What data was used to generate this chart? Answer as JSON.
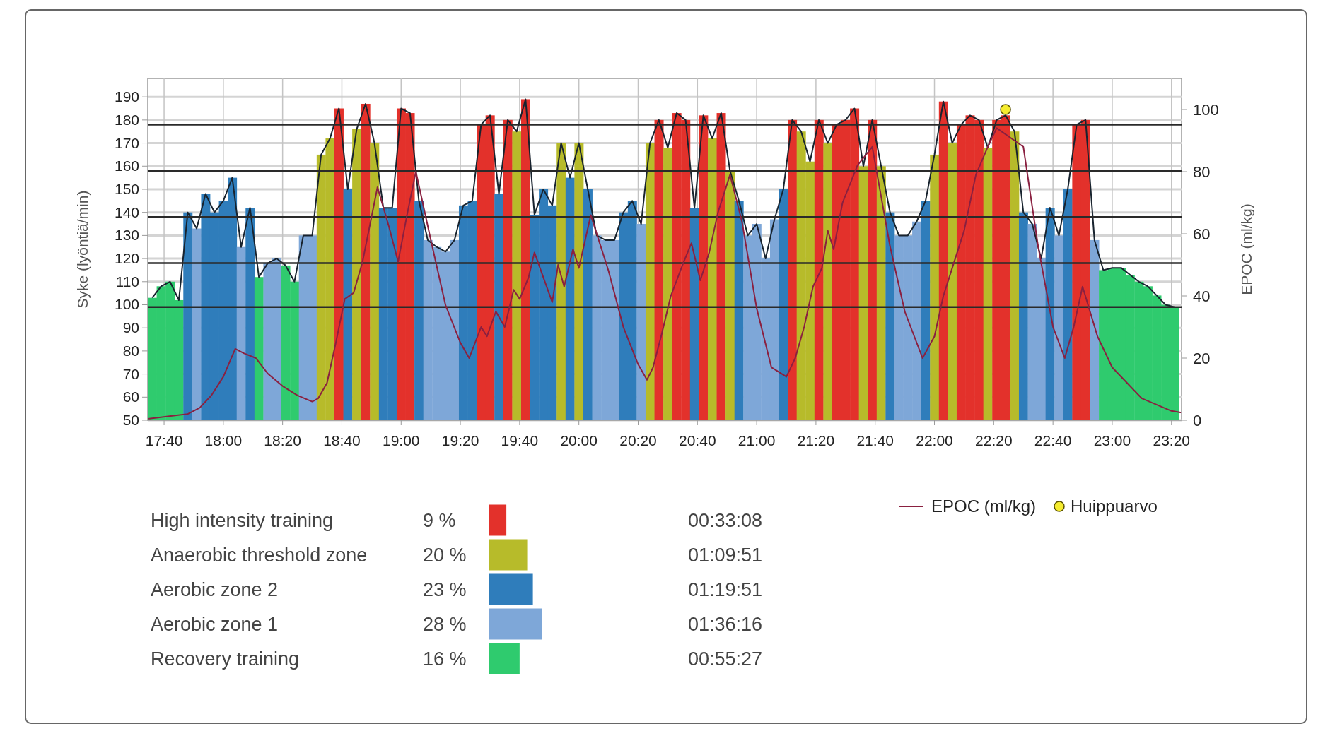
{
  "chart_data": [
    {
      "type": "bar",
      "xlim": [
        17.575,
        23.39
      ],
      "xticks": [
        {
          "value": 17.6667,
          "label": "17:40"
        },
        {
          "value": 18,
          "label": "18:00"
        },
        {
          "value": 18.3333,
          "label": "18:20"
        },
        {
          "value": 18.6667,
          "label": "18:40"
        },
        {
          "value": 19,
          "label": "19:00"
        },
        {
          "value": 19.3333,
          "label": "19:20"
        },
        {
          "value": 19.6667,
          "label": "19:40"
        },
        {
          "value": 20,
          "label": "20:00"
        },
        {
          "value": 20.3333,
          "label": "20:20"
        },
        {
          "value": 20.6667,
          "label": "20:40"
        },
        {
          "value": 21,
          "label": "21:00"
        },
        {
          "value": 21.3333,
          "label": "21:20"
        },
        {
          "value": 21.6667,
          "label": "21:40"
        },
        {
          "value": 22,
          "label": "22:00"
        },
        {
          "value": 22.3333,
          "label": "22:20"
        },
        {
          "value": 22.6667,
          "label": "22:40"
        },
        {
          "value": 23,
          "label": "23:00"
        },
        {
          "value": 23.3333,
          "label": "23:20"
        }
      ],
      "ylim": [
        50,
        198
      ],
      "yticks": [
        50,
        60,
        70,
        80,
        90,
        100,
        110,
        120,
        130,
        140,
        150,
        160,
        170,
        180,
        190
      ],
      "y2lim": [
        0,
        110
      ],
      "y2ticks": [
        0,
        20,
        40,
        60,
        80,
        100
      ],
      "ylabel": "Syke (lyöntiä/min)",
      "y2label": "EPOC (ml/kg)",
      "grid": true,
      "legend": "bottom right",
      "ref_lines": [
        {
          "axis": "y",
          "value": 99,
          "color": "#2a2a2a"
        },
        {
          "axis": "y",
          "value": 118,
          "color": "#2a2a2a"
        },
        {
          "axis": "y",
          "value": 138,
          "color": "#2a2a2a"
        },
        {
          "axis": "y",
          "value": 158,
          "color": "#2a2a2a"
        },
        {
          "axis": "y",
          "value": 178,
          "color": "#2a2a2a"
        }
      ],
      "series": [
        {
          "type": "bar",
          "x": [
            17.6,
            17.65,
            17.7,
            17.75,
            17.8,
            17.85,
            17.9,
            17.95,
            18,
            18.05,
            18.1,
            18.15,
            18.2,
            18.25,
            18.3,
            18.35,
            18.4,
            18.45,
            18.5,
            18.55,
            18.6,
            18.65,
            18.7,
            18.75,
            18.8,
            18.85,
            18.9,
            18.95,
            19,
            19.05,
            19.1,
            19.15,
            19.2,
            19.25,
            19.3,
            19.35,
            19.4,
            19.45,
            19.5,
            19.55,
            19.6,
            19.65,
            19.7,
            19.75,
            19.8,
            19.85,
            19.9,
            19.95,
            20,
            20.05,
            20.1,
            20.15,
            20.2,
            20.25,
            20.3,
            20.35,
            20.4,
            20.45,
            20.5,
            20.55,
            20.6,
            20.65,
            20.7,
            20.75,
            20.8,
            20.85,
            20.9,
            20.95,
            21,
            21.05,
            21.1,
            21.15,
            21.2,
            21.25,
            21.3,
            21.35,
            21.4,
            21.45,
            21.5,
            21.55,
            21.6,
            21.65,
            21.7,
            21.75,
            21.8,
            21.85,
            21.9,
            21.95,
            22,
            22.05,
            22.1,
            22.15,
            22.2,
            22.25,
            22.3,
            22.35,
            22.4,
            22.45,
            22.5,
            22.55,
            22.6,
            22.65,
            22.7,
            22.75,
            22.8,
            22.85,
            22.9,
            22.95,
            23,
            23.05,
            23.1,
            23.15,
            23.2,
            23.25,
            23.3,
            23.35
          ],
          "values": [
            103,
            108,
            110,
            102,
            140,
            133,
            148,
            140,
            145,
            155,
            125,
            142,
            112,
            118,
            120,
            117,
            110,
            130,
            130,
            165,
            172,
            185,
            150,
            176,
            187,
            170,
            142,
            142,
            185,
            183,
            145,
            128,
            125,
            123,
            128,
            143,
            145,
            178,
            182,
            148,
            180,
            175,
            189,
            139,
            150,
            143,
            170,
            155,
            170,
            150,
            130,
            128,
            128,
            140,
            145,
            135,
            170,
            180,
            168,
            183,
            180,
            142,
            182,
            172,
            183,
            158,
            145,
            130,
            135,
            120,
            137,
            150,
            180,
            175,
            162,
            180,
            170,
            178,
            180,
            185,
            160,
            180,
            160,
            140,
            130,
            130,
            136,
            145,
            165,
            188,
            170,
            178,
            182,
            180,
            168,
            180,
            182,
            175,
            140,
            135,
            120,
            142,
            130,
            150,
            178,
            180,
            128,
            115,
            116,
            116,
            113,
            110,
            108,
            104,
            100,
            99
          ],
          "colors": [
            "#2fcb6e",
            "#2fcb6e",
            "#2fcb6e",
            "#2fcb6e",
            "#2f7dbb",
            "#7ea7d8",
            "#2f7dbb",
            "#2f7dbb",
            "#2f7dbb",
            "#2f7dbb",
            "#7ea7d8",
            "#2f7dbb",
            "#2fcb6e",
            "#7ea7d8",
            "#7ea7d8",
            "#2fcb6e",
            "#2fcb6e",
            "#7ea7d8",
            "#7ea7d8",
            "#b7bb2a",
            "#b7bb2a",
            "#e3312b",
            "#2f7dbb",
            "#b7bb2a",
            "#e3312b",
            "#b7bb2a",
            "#2f7dbb",
            "#2f7dbb",
            "#e3312b",
            "#e3312b",
            "#2f7dbb",
            "#7ea7d8",
            "#7ea7d8",
            "#7ea7d8",
            "#7ea7d8",
            "#2f7dbb",
            "#2f7dbb",
            "#e3312b",
            "#e3312b",
            "#2f7dbb",
            "#e3312b",
            "#b7bb2a",
            "#e3312b",
            "#2f7dbb",
            "#2f7dbb",
            "#2f7dbb",
            "#b7bb2a",
            "#2f7dbb",
            "#b7bb2a",
            "#2f7dbb",
            "#7ea7d8",
            "#7ea7d8",
            "#7ea7d8",
            "#2f7dbb",
            "#2f7dbb",
            "#7ea7d8",
            "#b7bb2a",
            "#e3312b",
            "#b7bb2a",
            "#e3312b",
            "#e3312b",
            "#2f7dbb",
            "#e3312b",
            "#b7bb2a",
            "#e3312b",
            "#b7bb2a",
            "#2f7dbb",
            "#7ea7d8",
            "#7ea7d8",
            "#7ea7d8",
            "#7ea7d8",
            "#2f7dbb",
            "#e3312b",
            "#b7bb2a",
            "#b7bb2a",
            "#e3312b",
            "#b7bb2a",
            "#e3312b",
            "#e3312b",
            "#e3312b",
            "#b7bb2a",
            "#e3312b",
            "#b7bb2a",
            "#2f7dbb",
            "#7ea7d8",
            "#7ea7d8",
            "#7ea7d8",
            "#2f7dbb",
            "#b7bb2a",
            "#e3312b",
            "#b7bb2a",
            "#e3312b",
            "#e3312b",
            "#e3312b",
            "#b7bb2a",
            "#e3312b",
            "#e3312b",
            "#b7bb2a",
            "#2f7dbb",
            "#7ea7d8",
            "#7ea7d8",
            "#2f7dbb",
            "#7ea7d8",
            "#2f7dbb",
            "#e3312b",
            "#e3312b",
            "#7ea7d8",
            "#2fcb6e",
            "#2fcb6e",
            "#2fcb6e",
            "#2fcb6e",
            "#2fcb6e",
            "#2fcb6e",
            "#2fcb6e",
            "#2fcb6e",
            "#2fcb6e"
          ]
        },
        {
          "name": "EPOC (ml/kg)",
          "type": "line",
          "axis": "y2",
          "color": "#8a2040",
          "x": [
            17.583,
            17.8,
            17.867,
            17.933,
            18,
            18.067,
            18.117,
            18.183,
            18.25,
            18.333,
            18.417,
            18.5,
            18.533,
            18.583,
            18.633,
            18.683,
            18.733,
            18.783,
            18.867,
            18.933,
            18.983,
            19.033,
            19.083,
            19.167,
            19.25,
            19.333,
            19.383,
            19.45,
            19.483,
            19.533,
            19.583,
            19.633,
            19.667,
            19.717,
            19.75,
            19.85,
            19.883,
            19.917,
            19.967,
            20,
            20.067,
            20.167,
            20.25,
            20.333,
            20.383,
            20.417,
            20.467,
            20.517,
            20.583,
            20.633,
            20.683,
            20.733,
            20.783,
            20.85,
            20.917,
            21,
            21.083,
            21.167,
            21.217,
            21.267,
            21.317,
            21.367,
            21.4,
            21.433,
            21.483,
            21.567,
            21.65,
            21.75,
            21.833,
            21.933,
            22,
            22.05,
            22.1,
            22.167,
            22.233,
            22.3,
            22.35,
            22.5,
            22.583,
            22.667,
            22.733,
            22.783,
            22.833,
            22.917,
            23,
            23.167,
            23.333,
            23.383
          ],
          "values": [
            0.5,
            2,
            4,
            8,
            14,
            23,
            21.5,
            20,
            15,
            11,
            8,
            6,
            7,
            12,
            25,
            39,
            41,
            51,
            75,
            62,
            51,
            66,
            80,
            58,
            37,
            25,
            20,
            30,
            27,
            35,
            30,
            42,
            39,
            46,
            54,
            38,
            50,
            43,
            55,
            49,
            66,
            48,
            30,
            18,
            13,
            17,
            28,
            40,
            50,
            57,
            45,
            54,
            67,
            79,
            64,
            36,
            17,
            14,
            20,
            30,
            43,
            49,
            61,
            55,
            70,
            82,
            88,
            56,
            35,
            20,
            27,
            40,
            49,
            61,
            79,
            88,
            94,
            88,
            56,
            30,
            20,
            30,
            43,
            27,
            17,
            7,
            3,
            2.5
          ]
        },
        {
          "name": "Huippuarvo",
          "type": "scatter",
          "axis": "y2",
          "color": "#f5ec2f",
          "marker": "circle",
          "x": [
            22.4
          ],
          "values": [
            100
          ]
        }
      ]
    },
    {
      "type": "bar",
      "orientation": "horizontal",
      "tick_labels": "y",
      "categories": [
        "High intensity training",
        "Anaerobic threshold zone",
        "Aerobic zone 2",
        "Aerobic zone 1",
        "Recovery training"
      ],
      "values": [
        9,
        20,
        23,
        28,
        16
      ],
      "colors": [
        "#e3312b",
        "#b7bb2a",
        "#2f7dbb",
        "#7ea7d8",
        "#2fcb6e"
      ],
      "value_labels": [
        "9 %",
        "20 %",
        "23 %",
        "28 %",
        "16 %"
      ],
      "annotations": [
        "00:33:08",
        "01:09:51",
        "01:19:51",
        "01:36:16",
        "00:55:27"
      ]
    }
  ]
}
